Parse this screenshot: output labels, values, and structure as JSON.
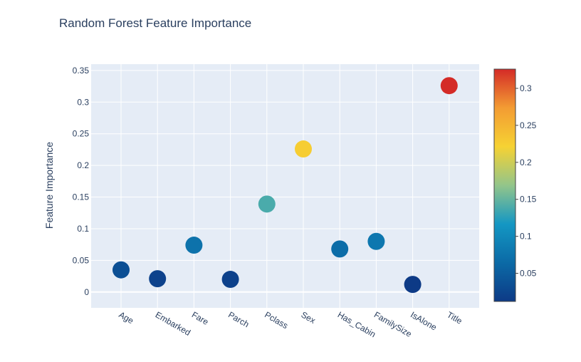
{
  "chart_data": {
    "type": "scatter",
    "title": "Random Forest Feature Importance",
    "xlabel": "",
    "ylabel": "Feature Importance",
    "categories": [
      "Age",
      "Embarked",
      "Fare",
      "Parch",
      "Pclass",
      "Sex",
      "Has_Cabin",
      "FamilySize",
      "IsAlone",
      "Title"
    ],
    "values": [
      0.035,
      0.021,
      0.074,
      0.02,
      0.139,
      0.226,
      0.068,
      0.08,
      0.012,
      0.326
    ],
    "ylim": [
      -0.025,
      0.36
    ],
    "yticks": [
      0,
      0.05,
      0.1,
      0.15,
      0.2,
      0.25,
      0.3,
      0.35
    ],
    "ytick_labels": [
      "0",
      "0.05",
      "0.1",
      "0.15",
      "0.2",
      "0.25",
      "0.3",
      "0.35"
    ],
    "grid": true,
    "colorscale": [
      "#0d3a86",
      "#0b6aa6",
      "#1497c3",
      "#93c58a",
      "#f6d233",
      "#f39c33",
      "#d42b27"
    ],
    "colorbar": {
      "range": [
        0.012,
        0.326
      ],
      "ticks": [
        0.05,
        0.1,
        0.15,
        0.2,
        0.25,
        0.3
      ],
      "tick_labels": [
        "0.05",
        "0.1",
        "0.15",
        "0.2",
        "0.25",
        "0.3"
      ],
      "placement": "right"
    },
    "colors": {
      "plot_bg": "#e5ecf6",
      "grid": "#ffffff",
      "text": "#2a3f5f",
      "title": "#2a3f5f"
    }
  }
}
